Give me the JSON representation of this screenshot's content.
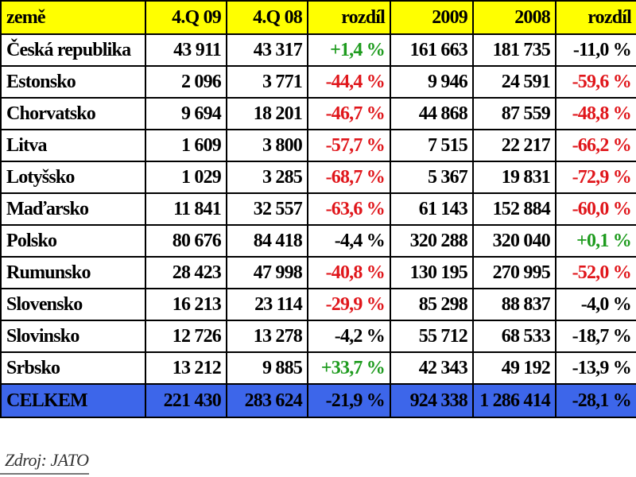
{
  "headers": [
    "země",
    "4.Q 09",
    "4.Q 08",
    "rozdíl",
    "2009",
    "2008",
    "rozdíl"
  ],
  "rows": [
    {
      "country": "Česká republika",
      "q09": "43 911",
      "q08": "43 317",
      "qdiff": "+1,4 %",
      "qdiff_tone": "pos",
      "y2009": "161 663",
      "y2008": "181 735",
      "ydiff": "-11,0 %",
      "ydiff_tone": "neu"
    },
    {
      "country": "Estonsko",
      "q09": "2 096",
      "q08": "3 771",
      "qdiff": "-44,4 %",
      "qdiff_tone": "neg",
      "y2009": "9 946",
      "y2008": "24 591",
      "ydiff": "-59,6 %",
      "ydiff_tone": "neg"
    },
    {
      "country": "Chorvatsko",
      "q09": "9 694",
      "q08": "18 201",
      "qdiff": "-46,7 %",
      "qdiff_tone": "neg",
      "y2009": "44 868",
      "y2008": "87 559",
      "ydiff": "-48,8 %",
      "ydiff_tone": "neg"
    },
    {
      "country": "Litva",
      "q09": "1 609",
      "q08": "3 800",
      "qdiff": "-57,7 %",
      "qdiff_tone": "neg",
      "y2009": "7 515",
      "y2008": "22 217",
      "ydiff": "-66,2 %",
      "ydiff_tone": "neg"
    },
    {
      "country": "Lotyšsko",
      "q09": "1 029",
      "q08": "3 285",
      "qdiff": "-68,7 %",
      "qdiff_tone": "neg",
      "y2009": "5 367",
      "y2008": "19 831",
      "ydiff": "-72,9 %",
      "ydiff_tone": "neg"
    },
    {
      "country": "Maďarsko",
      "q09": "11 841",
      "q08": "32 557",
      "qdiff": "-63,6 %",
      "qdiff_tone": "neg",
      "y2009": "61 143",
      "y2008": "152 884",
      "ydiff": "-60,0 %",
      "ydiff_tone": "neg"
    },
    {
      "country": "Polsko",
      "q09": "80 676",
      "q08": "84 418",
      "qdiff": "-4,4 %",
      "qdiff_tone": "neu",
      "y2009": "320 288",
      "y2008": "320 040",
      "ydiff": "+0,1 %",
      "ydiff_tone": "pos"
    },
    {
      "country": "Rumunsko",
      "q09": "28 423",
      "q08": "47 998",
      "qdiff": "-40,8 %",
      "qdiff_tone": "neg",
      "y2009": "130 195",
      "y2008": "270 995",
      "ydiff": "-52,0 %",
      "ydiff_tone": "neg"
    },
    {
      "country": "Slovensko",
      "q09": "16 213",
      "q08": "23 114",
      "qdiff": "-29,9 %",
      "qdiff_tone": "neg",
      "y2009": "85 298",
      "y2008": "88 837",
      "ydiff": "-4,0 %",
      "ydiff_tone": "neu"
    },
    {
      "country": "Slovinsko",
      "q09": "12 726",
      "q08": "13 278",
      "qdiff": "-4,2 %",
      "qdiff_tone": "neu",
      "y2009": "55 712",
      "y2008": "68 533",
      "ydiff": "-18,7 %",
      "ydiff_tone": "neu"
    },
    {
      "country": "Srbsko",
      "q09": "13 212",
      "q08": "9 885",
      "qdiff": "+33,7 %",
      "qdiff_tone": "pos",
      "y2009": "42 343",
      "y2008": "49 192",
      "ydiff": "-13,9 %",
      "ydiff_tone": "neu"
    }
  ],
  "total": {
    "country": "CELKEM",
    "q09": "221 430",
    "q08": "283 624",
    "qdiff": "-21,9 %",
    "y2009": "924 338",
    "y2008": "1 286 414",
    "ydiff": "-28,1 %"
  },
  "source": "Zdroj: JATO",
  "colors": {
    "header_bg": "#ffff00",
    "total_bg": "#3d66ea",
    "positive": "#1e9b1e",
    "negative": "#e0161b"
  }
}
